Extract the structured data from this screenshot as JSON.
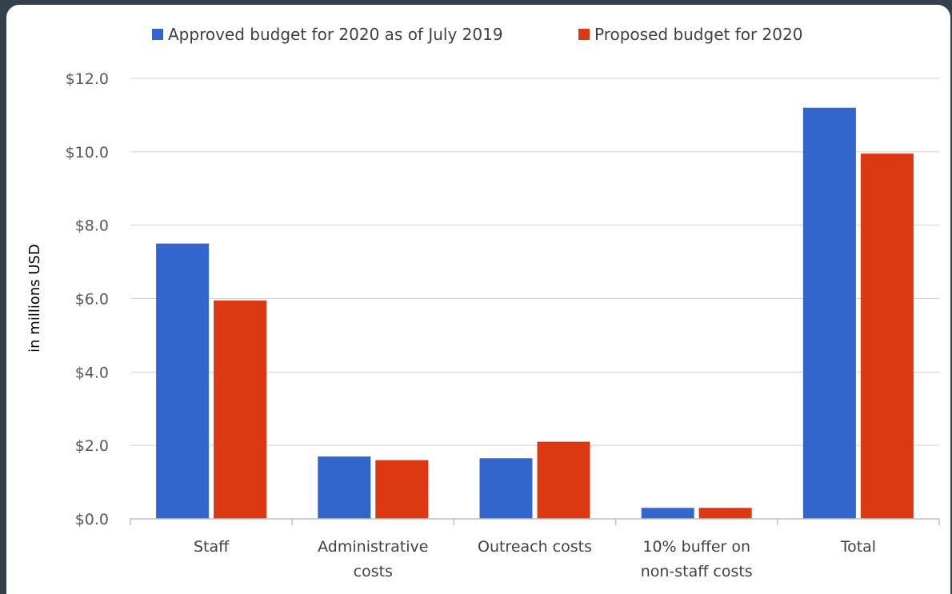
{
  "chart_data": {
    "type": "bar",
    "ylabel": "in millions USD",
    "ylim": [
      0,
      12
    ],
    "yticks": [
      "$0.0",
      "$2.0",
      "$4.0",
      "$6.0",
      "$8.0",
      "$10.0",
      "$12.0"
    ],
    "grid": true,
    "legend_position": "top",
    "categories": [
      [
        "Staff"
      ],
      [
        "Administrative",
        "costs"
      ],
      [
        "Outreach costs"
      ],
      [
        "10% buffer on",
        "non-staff costs"
      ],
      [
        "Total"
      ]
    ],
    "series": [
      {
        "name": "Approved budget for 2020 as of July 2019",
        "color": "#3366cc",
        "values": [
          7.5,
          1.7,
          1.65,
          0.3,
          11.2
        ]
      },
      {
        "name": "Proposed budget for 2020",
        "color": "#dc3912",
        "values": [
          5.95,
          1.6,
          2.1,
          0.3,
          9.95
        ]
      }
    ]
  }
}
